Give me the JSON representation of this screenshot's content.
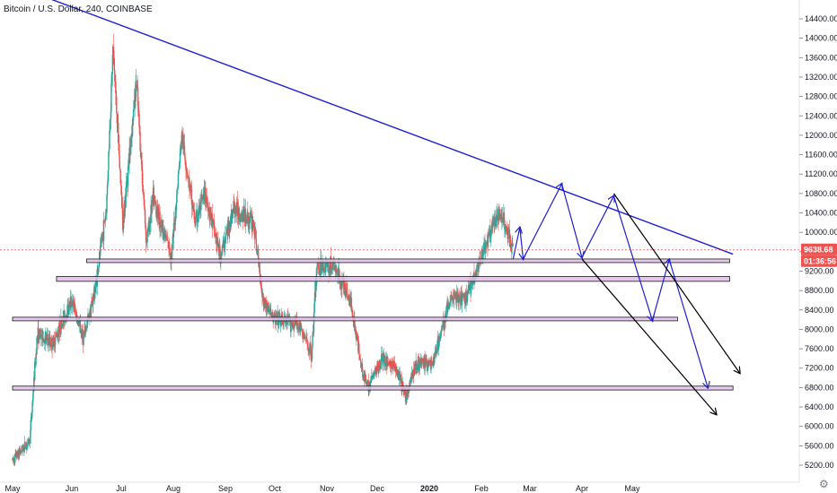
{
  "chart_data": {
    "type": "candlestick",
    "title": "Bitcoin / U.S. Dollar, 240, COINBASE",
    "x_ticks": [
      "May",
      "Jun",
      "Jul",
      "Aug",
      "Sep",
      "Oct",
      "Nov",
      "Dec",
      "2020",
      "Feb",
      "Mar",
      "Apr",
      "May"
    ],
    "x_range": [
      "2019-05-01",
      "2020-06-30"
    ],
    "y_ticks": [
      5200,
      5600,
      6000,
      6400,
      6800,
      7200,
      7600,
      8000,
      8400,
      8800,
      9200,
      9600,
      10000,
      10400,
      10800,
      11200,
      11600,
      12000,
      12400,
      12800,
      13200,
      13600,
      14000,
      14400
    ],
    "ylim": [
      5000,
      14500
    ],
    "last_price": "9638.68",
    "countdown": "01:36:56",
    "price_series": [
      {
        "date": "2019-05-01",
        "value": 5300
      },
      {
        "date": "2019-05-10",
        "value": 5700
      },
      {
        "date": "2019-05-14",
        "value": 7900
      },
      {
        "date": "2019-05-22",
        "value": 7700
      },
      {
        "date": "2019-06-01",
        "value": 8600
      },
      {
        "date": "2019-06-08",
        "value": 7800
      },
      {
        "date": "2019-06-15",
        "value": 8800
      },
      {
        "date": "2019-06-22",
        "value": 10500
      },
      {
        "date": "2019-06-26",
        "value": 13800
      },
      {
        "date": "2019-07-02",
        "value": 10200
      },
      {
        "date": "2019-07-10",
        "value": 13100
      },
      {
        "date": "2019-07-16",
        "value": 9800
      },
      {
        "date": "2019-07-20",
        "value": 10700
      },
      {
        "date": "2019-07-31",
        "value": 9500
      },
      {
        "date": "2019-08-06",
        "value": 12000
      },
      {
        "date": "2019-08-14",
        "value": 10200
      },
      {
        "date": "2019-08-20",
        "value": 10800
      },
      {
        "date": "2019-08-29",
        "value": 9500
      },
      {
        "date": "2019-09-06",
        "value": 10500
      },
      {
        "date": "2019-09-18",
        "value": 10200
      },
      {
        "date": "2019-09-24",
        "value": 8600
      },
      {
        "date": "2019-10-01",
        "value": 8200
      },
      {
        "date": "2019-10-15",
        "value": 8100
      },
      {
        "date": "2019-10-23",
        "value": 7500
      },
      {
        "date": "2019-10-26",
        "value": 9300
      },
      {
        "date": "2019-11-05",
        "value": 9300
      },
      {
        "date": "2019-11-15",
        "value": 8600
      },
      {
        "date": "2019-11-22",
        "value": 7200
      },
      {
        "date": "2019-11-25",
        "value": 6800
      },
      {
        "date": "2019-12-04",
        "value": 7400
      },
      {
        "date": "2019-12-12",
        "value": 7200
      },
      {
        "date": "2019-12-18",
        "value": 6600
      },
      {
        "date": "2019-12-24",
        "value": 7300
      },
      {
        "date": "2020-01-03",
        "value": 7300
      },
      {
        "date": "2020-01-14",
        "value": 8700
      },
      {
        "date": "2020-01-22",
        "value": 8600
      },
      {
        "date": "2020-01-31",
        "value": 9400
      },
      {
        "date": "2020-02-09",
        "value": 10200
      },
      {
        "date": "2020-02-13",
        "value": 10400
      },
      {
        "date": "2020-02-20",
        "value": 9638.68
      }
    ],
    "resistance_trendline": [
      {
        "date": "2019-05-01",
        "value": 15100
      },
      {
        "date": "2020-06-30",
        "value": 9550
      }
    ],
    "support_zones": [
      {
        "date_start": "2019-06-10",
        "date_end": "2020-06-28",
        "y_low": 9380,
        "y_high": 9450
      },
      {
        "date_start": "2019-05-24",
        "date_end": "2020-06-28",
        "y_low": 8990,
        "y_high": 9090
      },
      {
        "date_start": "2019-05-01",
        "date_end": "2020-05-28",
        "y_low": 8200,
        "y_high": 8250
      },
      {
        "date_start": "2019-05-01",
        "date_end": "2020-06-30",
        "y_low": 6750,
        "y_high": 6830
      }
    ],
    "projection_path": [
      {
        "date": "2020-02-20",
        "value": 9450
      },
      {
        "date": "2020-02-24",
        "value": 10100
      },
      {
        "date": "2020-02-26",
        "value": 9450
      },
      {
        "date": "2020-03-20",
        "value": 11000
      },
      {
        "date": "2020-04-01",
        "value": 9480
      },
      {
        "date": "2020-04-20",
        "value": 10750
      },
      {
        "date": "2020-05-13",
        "value": 8180
      },
      {
        "date": "2020-05-23",
        "value": 9440
      },
      {
        "date": "2020-06-15",
        "value": 6800
      }
    ],
    "channel_lines": [
      {
        "from": {
          "date": "2020-04-01",
          "value": 9450
        },
        "to": {
          "date": "2020-06-20",
          "value": 6250
        }
      },
      {
        "from": {
          "date": "2020-04-20",
          "value": 10800
        },
        "to": {
          "date": "2020-07-04",
          "value": 7100
        }
      }
    ],
    "colors": {
      "up": "#26a69a",
      "down": "#ef5350",
      "trendline": "#1f1fd0",
      "zone_fill": "#e1bee7",
      "zone_border": "#1a1a1a",
      "channel": "#000000",
      "last_price_badge": "#ef5350",
      "countdown_badge": "#ef5350",
      "price_line": "#ef5350"
    },
    "grid": false,
    "legend_position": "top-left"
  }
}
